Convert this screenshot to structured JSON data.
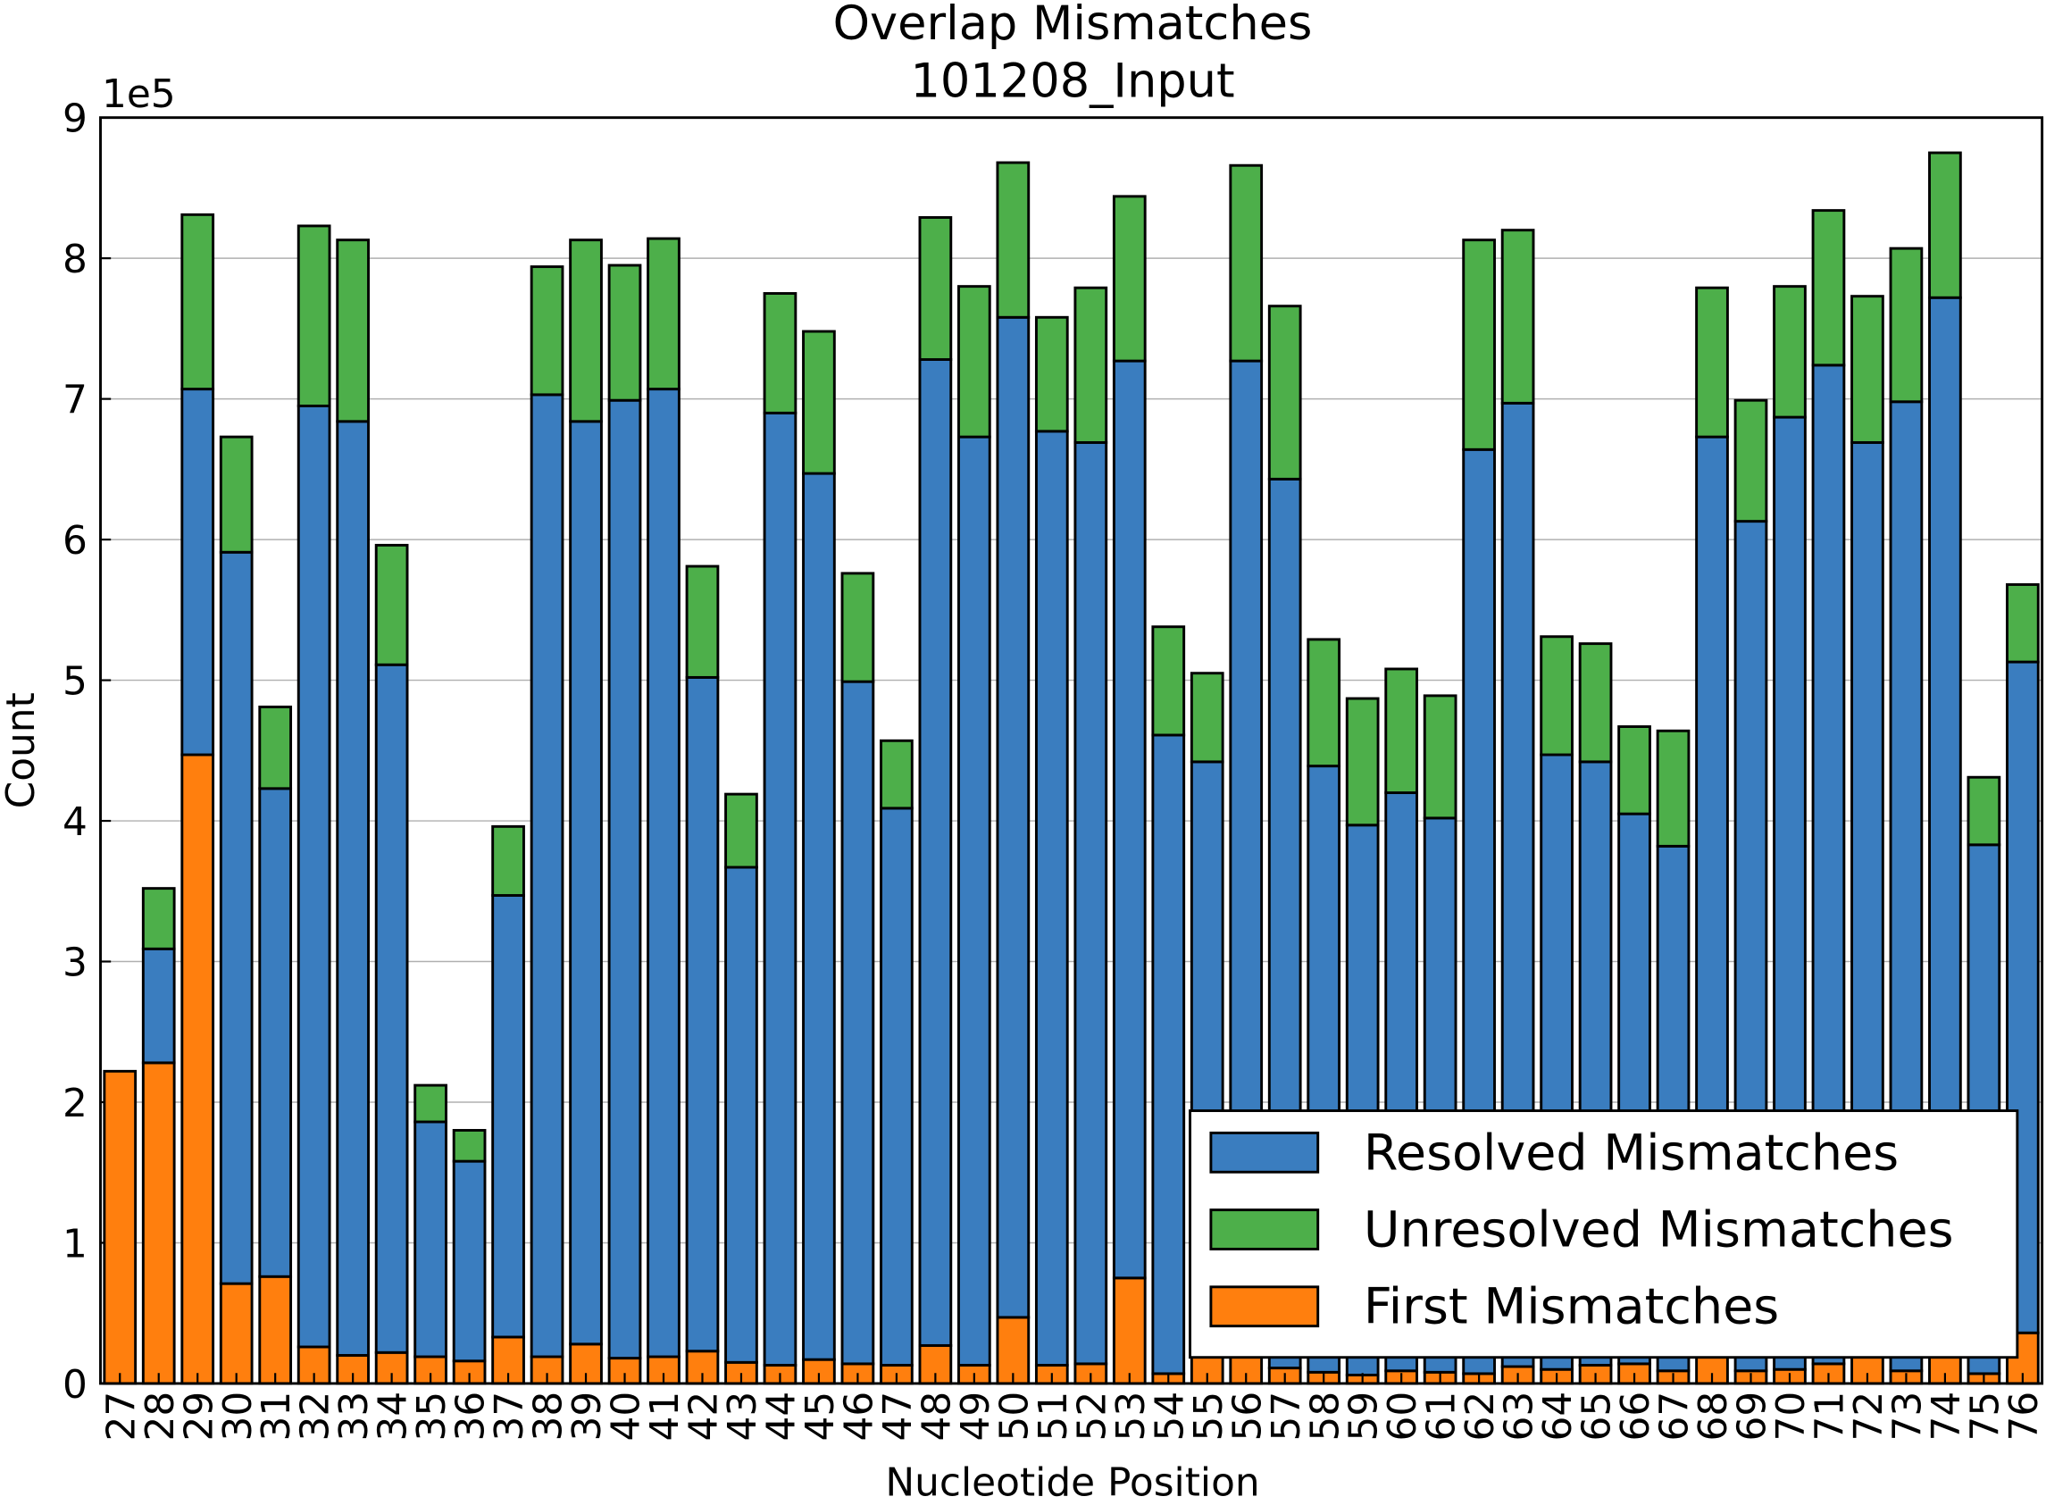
{
  "chart_data": {
    "type": "stacked-bar",
    "title": "Overlap Mismatches",
    "subtitle": "101208_Input",
    "x_label": "Nucleotide Position",
    "y_label": "Count",
    "y_offset_label": "1e5",
    "categories": [
      "27",
      "28",
      "29",
      "30",
      "31",
      "32",
      "33",
      "34",
      "35",
      "36",
      "37",
      "38",
      "39",
      "40",
      "41",
      "42",
      "43",
      "44",
      "45",
      "46",
      "47",
      "48",
      "49",
      "50",
      "51",
      "52",
      "53",
      "54",
      "55",
      "56",
      "57",
      "58",
      "59",
      "60",
      "61",
      "62",
      "63",
      "64",
      "65",
      "66",
      "67",
      "68",
      "69",
      "70",
      "71",
      "72",
      "73",
      "74",
      "75",
      "76"
    ],
    "series": [
      {
        "name": "First Mismatches",
        "color": "#ff7f0e",
        "values": [
          2.22,
          2.28,
          4.47,
          0.71,
          0.76,
          0.26,
          0.2,
          0.22,
          0.19,
          0.16,
          0.33,
          0.19,
          0.28,
          0.18,
          0.19,
          0.23,
          0.15,
          0.13,
          0.17,
          0.14,
          0.13,
          0.27,
          0.13,
          0.47,
          0.13,
          0.14,
          0.75,
          0.07,
          0.2,
          0.22,
          0.11,
          0.08,
          0.06,
          0.09,
          0.08,
          0.07,
          0.12,
          0.1,
          0.13,
          0.14,
          0.09,
          0.2,
          0.09,
          0.1,
          0.14,
          0.2,
          0.09,
          0.2,
          0.07,
          0.36
        ]
      },
      {
        "name": "Resolved Mismatches",
        "color": "#3a7dbf",
        "values": [
          0,
          0.81,
          2.6,
          5.2,
          3.47,
          6.69,
          6.64,
          4.89,
          1.67,
          1.42,
          3.14,
          6.84,
          6.56,
          6.81,
          6.88,
          4.79,
          3.52,
          6.77,
          6.3,
          4.85,
          3.96,
          7.01,
          6.6,
          7.11,
          6.64,
          6.55,
          6.52,
          4.54,
          4.22,
          7.05,
          6.32,
          4.31,
          3.91,
          4.11,
          3.94,
          6.57,
          6.85,
          4.37,
          4.29,
          3.91,
          3.73,
          6.53,
          6.04,
          6.77,
          7.1,
          6.49,
          6.89,
          7.52,
          3.76,
          4.77
        ]
      },
      {
        "name": "Unresolved Mismatches",
        "color": "#4daf4a",
        "values": [
          0,
          0.43,
          1.24,
          0.82,
          0.58,
          1.28,
          1.29,
          0.85,
          0.26,
          0.22,
          0.49,
          0.91,
          1.29,
          0.96,
          1.07,
          0.79,
          0.52,
          0.85,
          1.01,
          0.77,
          0.48,
          1.01,
          1.07,
          1.1,
          0.81,
          1.1,
          1.17,
          0.77,
          0.63,
          1.39,
          1.23,
          0.9,
          0.9,
          0.88,
          0.87,
          1.49,
          1.23,
          0.84,
          0.84,
          0.62,
          0.82,
          1.06,
          0.86,
          0.93,
          1.1,
          1.04,
          1.09,
          1.03,
          0.48,
          0.55
        ]
      }
    ],
    "ylim": [
      0,
      9
    ],
    "yticks": [
      0,
      1,
      2,
      3,
      4,
      5,
      6,
      7,
      8,
      9
    ],
    "grid": true,
    "legend": "lower right"
  }
}
